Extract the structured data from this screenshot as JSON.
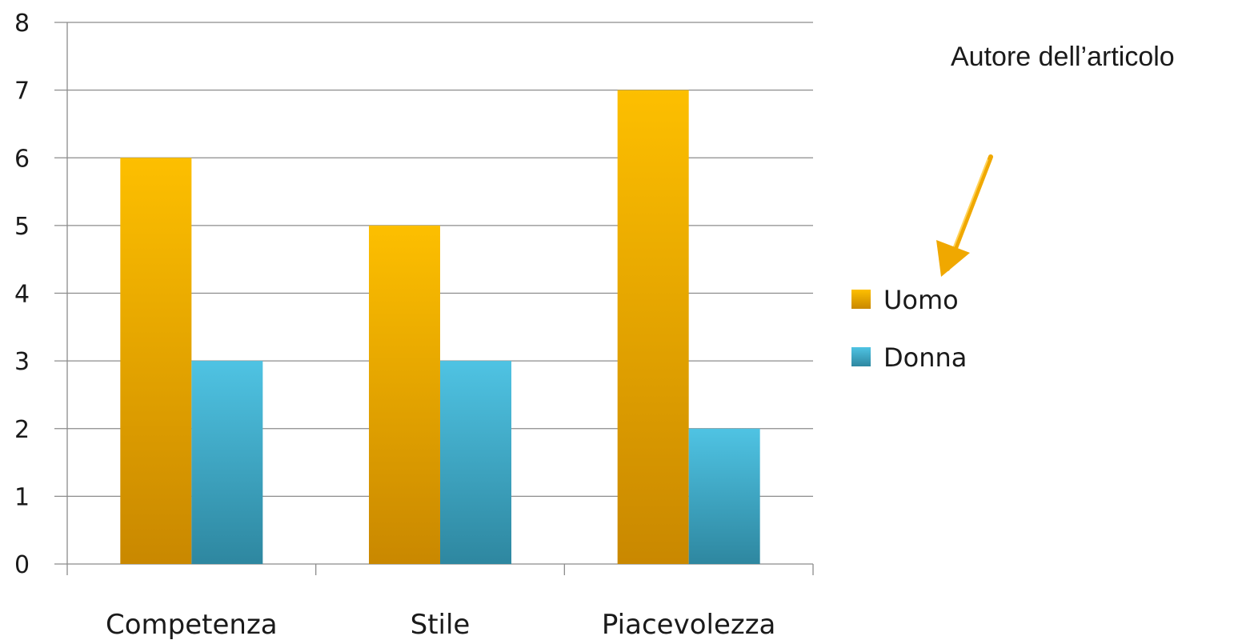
{
  "chart_data": {
    "type": "bar",
    "categories": [
      "Competenza",
      "Stile",
      "Piacevolezza"
    ],
    "series": [
      {
        "name": "Uomo",
        "values": [
          6,
          5,
          7
        ],
        "color": "#f0a800"
      },
      {
        "name": "Donna",
        "values": [
          3,
          3,
          2
        ],
        "color": "#3aa8c8"
      }
    ],
    "ylim": [
      0,
      8
    ],
    "yticks": [
      0,
      1,
      2,
      3,
      4,
      5,
      6,
      7,
      8
    ],
    "grid": true,
    "legend": "right",
    "annotation": "Autore dell’articolo",
    "title": "",
    "xlabel": "",
    "ylabel": ""
  }
}
